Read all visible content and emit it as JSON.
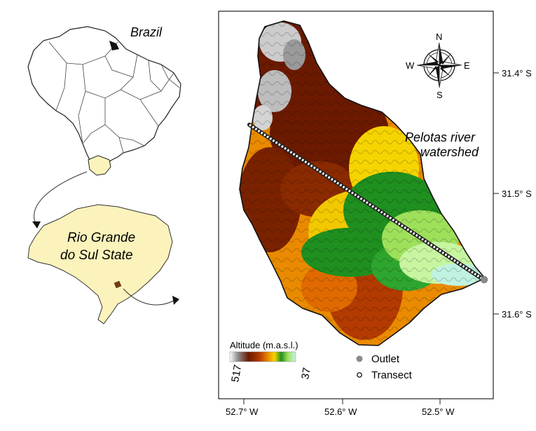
{
  "inset": {
    "country_label": "Brazil",
    "state_label_line1": "Rio Grande",
    "state_label_line2": "do Sul State"
  },
  "map": {
    "watershed_label_line1": "Pelotas river",
    "watershed_label_line2": "watershed",
    "compass": {
      "n": "N",
      "s": "S",
      "e": "E",
      "w": "W"
    },
    "lat_ticks": [
      "31.4° S",
      "31.5° S",
      "31.6° S"
    ],
    "lon_ticks": [
      "52.7° W",
      "52.6° W",
      "52.5° W"
    ],
    "legend": {
      "altitude_title": "Altitude (m.a.s.l.)",
      "altitude_max": "517",
      "altitude_min": "37",
      "outlet_label": "Outlet",
      "transect_label": "Transect"
    }
  },
  "colors": {
    "state_fill": "#fbf3bb",
    "outlet": "#8a8a8a",
    "high": "#6b1a00",
    "low": "#bff2e0"
  }
}
